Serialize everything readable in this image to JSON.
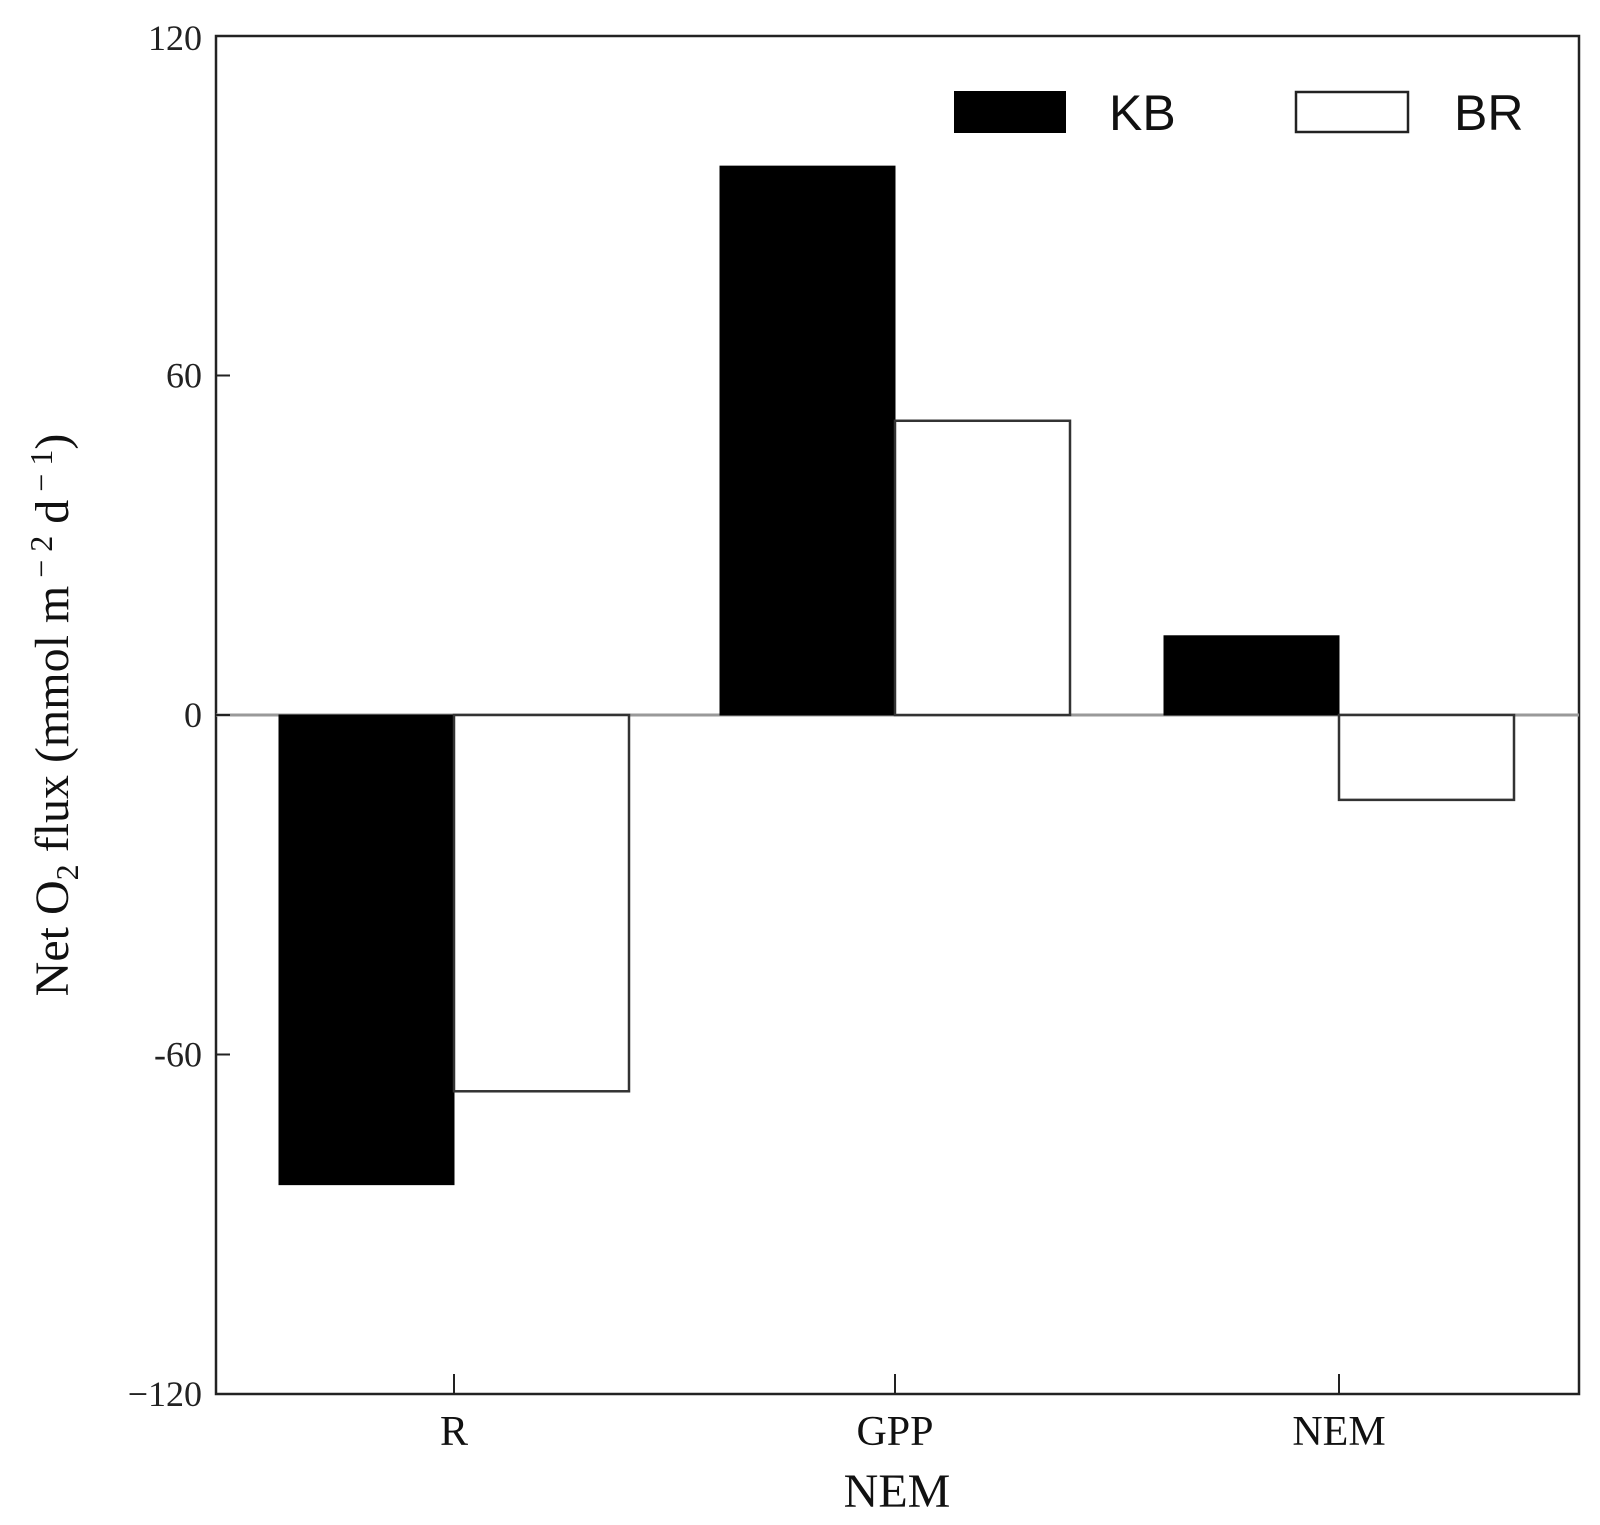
{
  "chart_data": {
    "type": "bar",
    "categories": [
      "R",
      "GPP",
      "NEM"
    ],
    "series": [
      {
        "name": "KB",
        "values": [
          -83,
          97,
          14
        ],
        "color": "#000000"
      },
      {
        "name": "BR",
        "values": [
          -66.5,
          52,
          -15
        ],
        "color": "#ffffff"
      }
    ],
    "xlabel": "NEM",
    "ylabel": {
      "main": "Net O",
      "sub": "2",
      "rest": " flux (mmol m",
      "sup1": " − 2",
      "mid": " d",
      "sup2": " − 1",
      "end": ")"
    },
    "ylim": [
      -120,
      120
    ],
    "yticks": [
      120,
      60,
      0,
      -60,
      -120
    ],
    "ytick_labels": [
      "120",
      "60",
      "0",
      "-60",
      "−120"
    ],
    "legend_position": "top-right",
    "grid": false
  }
}
